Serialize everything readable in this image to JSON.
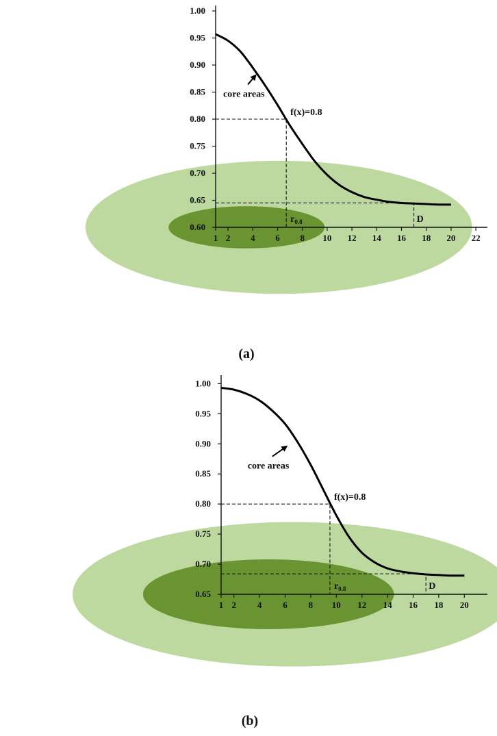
{
  "chart_data": [
    {
      "type": "line",
      "panel_label": "(a)",
      "x_ticks": [
        1,
        2,
        4,
        6,
        8,
        10,
        12,
        14,
        16,
        18,
        20,
        22
      ],
      "y_ticks": [
        "1.00",
        "0.95",
        "0.90",
        "0.85",
        "0.80",
        "0.75",
        "0.70",
        "0.65",
        "0.60"
      ],
      "xlim": [
        1,
        22
      ],
      "ylim": [
        0.6,
        1.0
      ],
      "curve": {
        "x": [
          1,
          2,
          3,
          4,
          5,
          6,
          7,
          8,
          9,
          10,
          11,
          12,
          13,
          14,
          15,
          16,
          17,
          18,
          19,
          20
        ],
        "y": [
          0.957,
          0.945,
          0.925,
          0.895,
          0.862,
          0.826,
          0.788,
          0.754,
          0.722,
          0.697,
          0.678,
          0.665,
          0.656,
          0.651,
          0.647,
          0.645,
          0.644,
          0.643,
          0.642,
          0.642
        ]
      },
      "annotations": {
        "core_label": "core areas",
        "core_arrow_from": [
          3.6,
          0.864
        ],
        "core_arrow_to": [
          4.3,
          0.883
        ],
        "fx_label": "f(x)=0.8",
        "fx_point": [
          6.7,
          0.8
        ],
        "r_label_main": "r",
        "r_label_sub": "0.8",
        "r_value": 6.7,
        "d_label": "D",
        "d_value": 17,
        "d_level": 0.645
      },
      "zones": {
        "outer": {
          "center_x": 6.1,
          "center_y": 0.6,
          "rx": 15.6,
          "ry": 0.123,
          "color": "#bdd9a0"
        },
        "core": {
          "center_x": 3.5,
          "center_y": 0.6,
          "rx": 6.3,
          "ry": 0.039,
          "color": "#6a9432"
        }
      }
    },
    {
      "type": "line",
      "panel_label": "(b)",
      "x_ticks": [
        1,
        2,
        4,
        6,
        8,
        10,
        12,
        14,
        16,
        18,
        20
      ],
      "y_ticks": [
        "1.00",
        "0.95",
        "0.90",
        "0.85",
        "0.80",
        "0.75",
        "0.70",
        "0.65"
      ],
      "xlim": [
        1,
        21
      ],
      "ylim": [
        0.65,
        1.0
      ],
      "curve": {
        "x": [
          1,
          2,
          3,
          4,
          5,
          6,
          7,
          8,
          9,
          10,
          11,
          12,
          13,
          14,
          15,
          16,
          17,
          18,
          19,
          20
        ],
        "y": [
          0.993,
          0.99,
          0.983,
          0.972,
          0.955,
          0.933,
          0.902,
          0.865,
          0.823,
          0.781,
          0.745,
          0.719,
          0.703,
          0.693,
          0.688,
          0.685,
          0.683,
          0.682,
          0.681,
          0.681
        ]
      },
      "annotations": {
        "core_label": "core areas",
        "core_arrow_from": [
          5.0,
          0.879
        ],
        "core_arrow_to": [
          6.2,
          0.897
        ],
        "fx_label": "f(x)=0.8",
        "fx_point": [
          9.5,
          0.8
        ],
        "r_label_main": "r",
        "r_label_sub": "0.8",
        "r_value": 9.5,
        "d_label": "D",
        "d_value": 17,
        "d_level": 0.684
      },
      "zones": {
        "outer": {
          "center_x": 6.6,
          "center_y": 0.65,
          "rx": 17.2,
          "ry": 0.12,
          "color": "#bdd9a0"
        },
        "core": {
          "center_x": 4.7,
          "center_y": 0.65,
          "rx": 9.8,
          "ry": 0.058,
          "color": "#6a9432"
        }
      }
    }
  ]
}
